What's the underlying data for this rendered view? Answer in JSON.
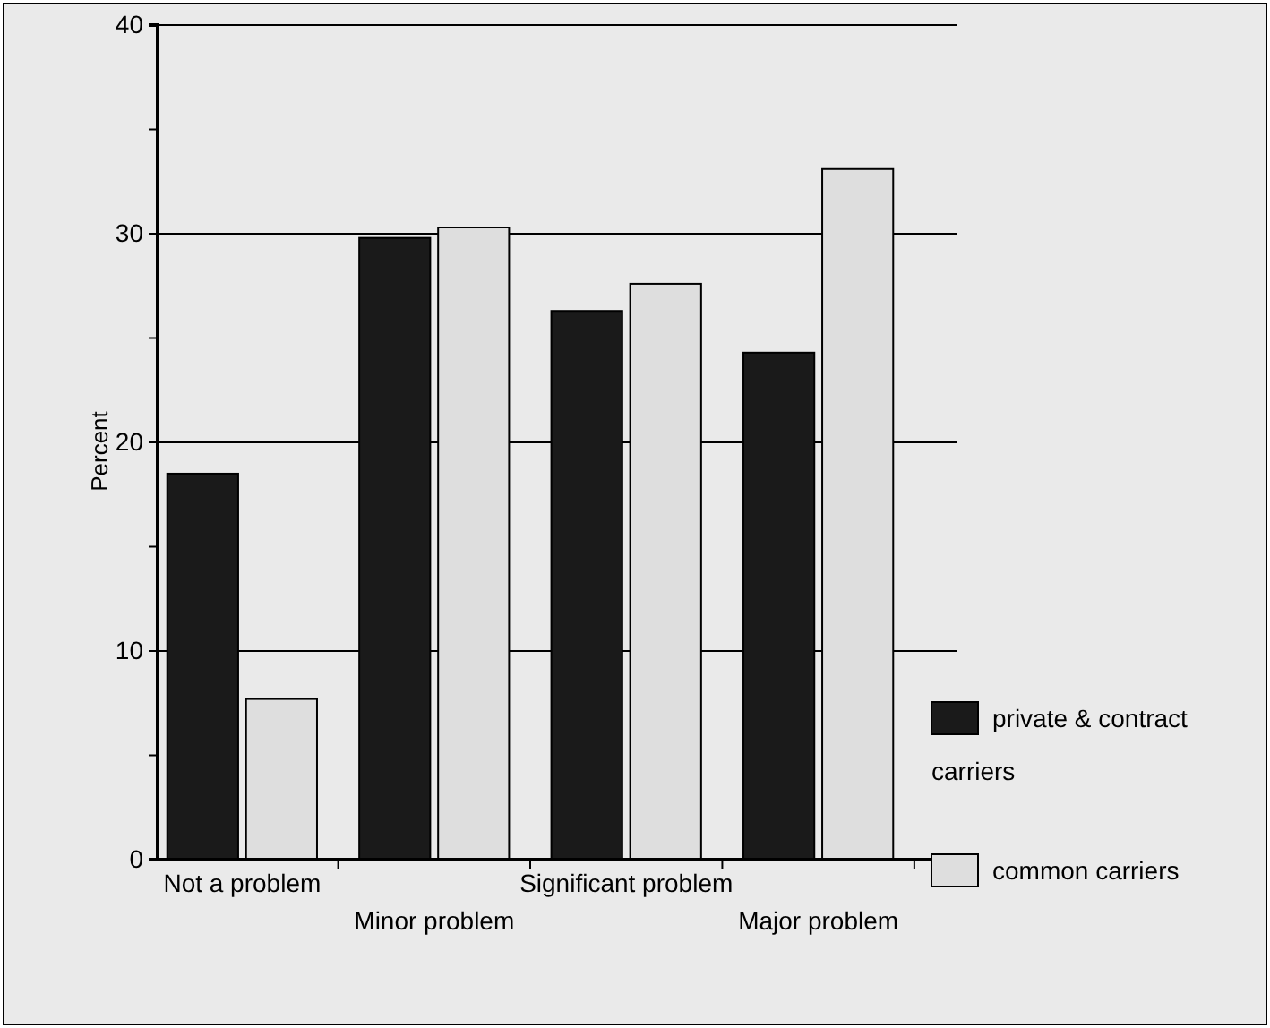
{
  "chart_data": {
    "type": "bar",
    "ylabel": "Percent",
    "categories": [
      "Not a problem",
      "Minor problem",
      "Significant problem",
      "Major problem"
    ],
    "series": [
      {
        "name": "private & contract carriers",
        "color": "#1a1a1a",
        "values": [
          18.5,
          29.8,
          26.3,
          24.3
        ]
      },
      {
        "name": "common carriers",
        "color": "#dedede",
        "values": [
          7.7,
          30.3,
          27.6,
          33.1
        ]
      }
    ],
    "ylim": [
      0,
      40
    ],
    "yticks": [
      0,
      {
        "value": 5,
        "label": null
      },
      10,
      {
        "value": 15,
        "label": null
      },
      20,
      {
        "value": 25,
        "label": null
      },
      30,
      {
        "value": 35,
        "label": null
      },
      40
    ],
    "grid": "y",
    "legend": "right"
  }
}
